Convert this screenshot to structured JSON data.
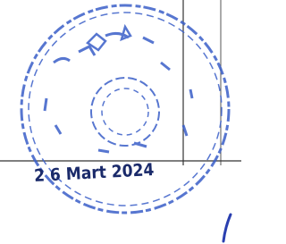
{
  "stamp": {
    "date": "2 6 Mart 2024"
  }
}
